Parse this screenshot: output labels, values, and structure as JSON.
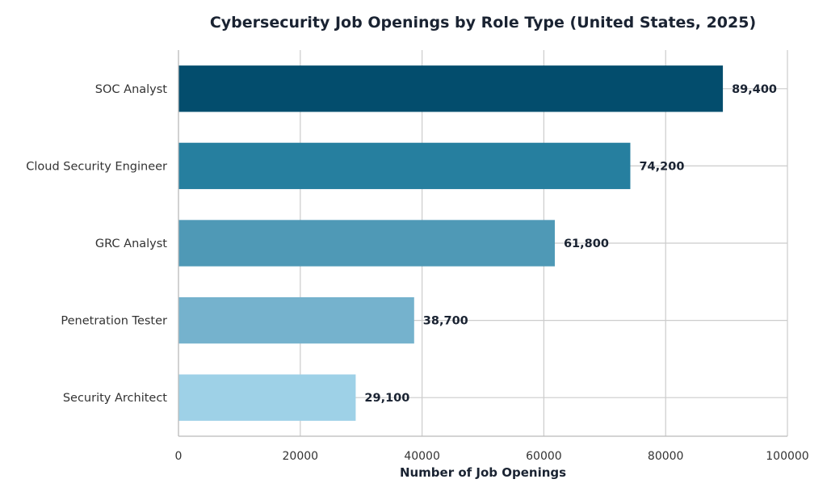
{
  "chart_data": {
    "type": "bar",
    "orientation": "horizontal",
    "title": "Cybersecurity Job Openings by Role Type (United States, 2025)",
    "xlabel": "Number of Job Openings",
    "ylabel": "",
    "xlim": [
      0,
      100000
    ],
    "xticks": [
      0,
      20000,
      40000,
      60000,
      80000,
      100000
    ],
    "xtick_labels": [
      "0",
      "20000",
      "40000",
      "60000",
      "80000",
      "100000"
    ],
    "grid": true,
    "categories": [
      "SOC Analyst",
      "Cloud Security Engineer",
      "GRC Analyst",
      "Penetration Tester",
      "Security Architect"
    ],
    "values": [
      89400,
      74200,
      61800,
      38700,
      29100
    ],
    "value_labels": [
      "89,400",
      "74,200",
      "61,800",
      "38,700",
      "29,100"
    ],
    "colors": [
      "#034d6d",
      "#267f9f",
      "#4f99b6",
      "#75b2cd",
      "#9ed1e7"
    ]
  }
}
